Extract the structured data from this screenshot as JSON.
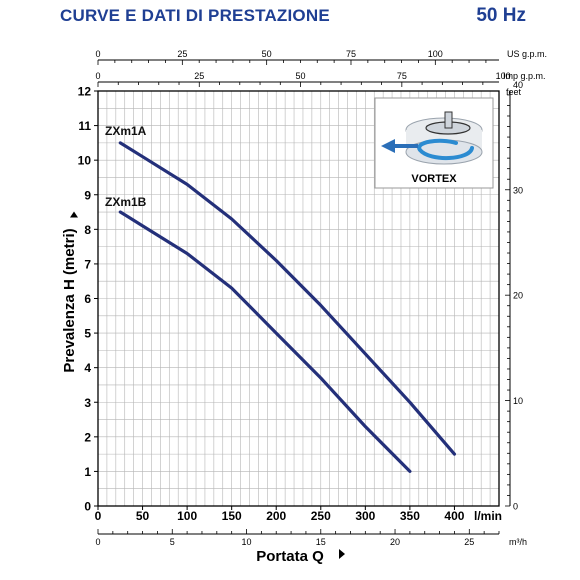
{
  "header": {
    "title": "CURVE E DATI DI PRESTAZIONE",
    "frequency": "50 Hz"
  },
  "colors": {
    "title": "#1f3f93",
    "curve": "#24307a",
    "grid": "#b5b5b5",
    "axis": "#000000",
    "inset_border": "#9a9a9a",
    "inset_bg": "#e9ecef"
  },
  "chart_data": {
    "type": "line",
    "x": {
      "label": "Portata Q",
      "unit": "l/min",
      "lim": [
        0,
        450
      ],
      "ticks": [
        0,
        50,
        100,
        150,
        200,
        250,
        300,
        350,
        400
      ]
    },
    "y": {
      "label": "Prevalenza H (metri)",
      "lim": [
        0,
        12
      ],
      "ticks": [
        0,
        1,
        2,
        3,
        4,
        5,
        6,
        7,
        8,
        9,
        10,
        11,
        12
      ]
    },
    "top_axes": [
      {
        "unit": "US g.p.m.",
        "ticks": [
          0,
          25,
          50,
          75,
          100
        ]
      },
      {
        "unit": "Imp g.p.m.",
        "ticks": [
          0,
          25,
          50,
          75,
          100
        ]
      }
    ],
    "bottom_axis_2": {
      "unit": "m³/h",
      "ticks": [
        0,
        5,
        10,
        15,
        20,
        25
      ]
    },
    "right_axis": {
      "unit": "feet",
      "ticks": [
        0,
        10,
        20,
        30,
        40
      ]
    },
    "series": [
      {
        "name": "ZXm1A",
        "x": [
          25,
          50,
          100,
          150,
          200,
          250,
          300,
          350,
          400
        ],
        "values": [
          10.5,
          10.1,
          9.3,
          8.3,
          7.1,
          5.8,
          4.4,
          3.0,
          1.5
        ]
      },
      {
        "name": "ZXm1B",
        "x": [
          25,
          50,
          100,
          150,
          200,
          250,
          300,
          350
        ],
        "values": [
          8.5,
          8.1,
          7.3,
          6.3,
          5.0,
          3.7,
          2.3,
          1.0
        ]
      }
    ],
    "inset_label": "VORTEX",
    "grid": true
  }
}
